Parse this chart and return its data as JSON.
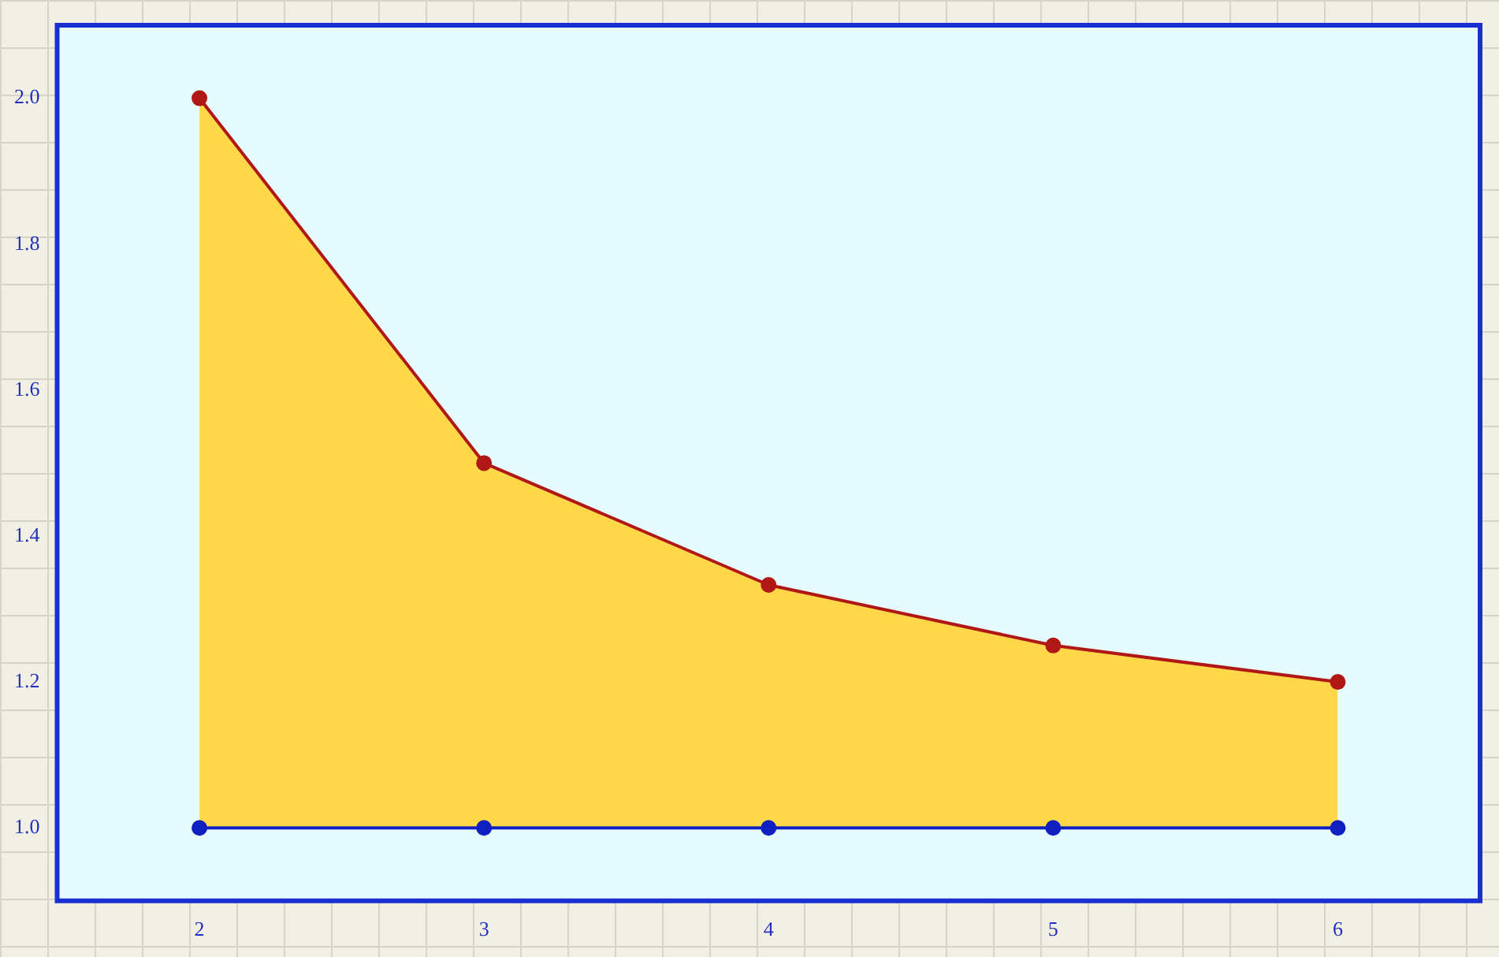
{
  "chart_data": {
    "type": "area",
    "x": [
      2,
      3,
      4,
      5,
      6
    ],
    "series": [
      {
        "type": "area",
        "color": "#ffd84a",
        "values": [
          2.0,
          1.5,
          1.333,
          1.25,
          1.2
        ]
      },
      {
        "type": "line",
        "color": "#1020c0",
        "values": [
          1.0,
          1.0,
          1.0,
          1.0,
          1.0
        ]
      }
    ],
    "marker": "circle",
    "xlim": [
      1.5,
      6.5
    ],
    "xticks": [
      2,
      3,
      4,
      5,
      6
    ],
    "ylim": [
      0.9,
      2.1
    ],
    "yticks": [
      {
        "value": 1,
        "label": "1.0"
      },
      1.2,
      1.4,
      1.6,
      1.8,
      {
        "value": 2,
        "label": "2.0"
      }
    ],
    "grid": false,
    "legend": false
  }
}
